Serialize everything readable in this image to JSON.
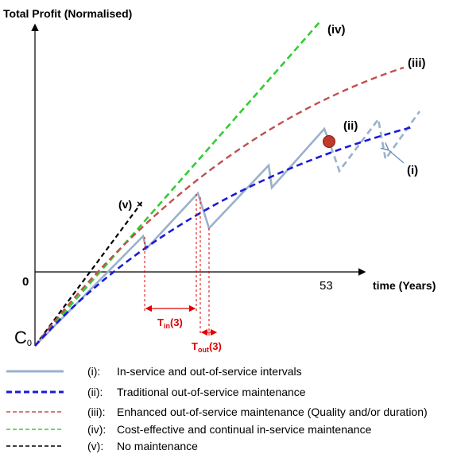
{
  "chart_data": {
    "type": "line",
    "ylabel": "Total Profit (Normalised)",
    "xlabel": "time (Years)",
    "origin_label": "0",
    "x_tick": "53",
    "c0_label": {
      "main": "C",
      "sub": "0"
    },
    "curve_labels": {
      "i": "(i)",
      "ii": "(ii)",
      "iii": "(iii)",
      "iv": "(iv)",
      "v": "(v)"
    },
    "t_in": {
      "main": "T",
      "sub": "in",
      "suffix": "(3)"
    },
    "t_out": {
      "main": "T",
      "sub": "out",
      "suffix": "(3)"
    },
    "colors": {
      "i": "#9ab1cc",
      "ii": "#1a1adb",
      "iii": "#c0504d",
      "iv": "#33cc33",
      "v": "#000000",
      "annotation": "#e00000",
      "marker": "#c0392b"
    }
  },
  "legend": [
    {
      "key": "(i):",
      "text": "In-service and out-of-service intervals",
      "color": "#9ab1cc",
      "style": "solid"
    },
    {
      "key": "(ii):",
      "text": "Traditional out-of-service maintenance",
      "color": "#1a1adb",
      "style": "dashed-bold"
    },
    {
      "key": "(iii):",
      "text": "Enhanced out-of-service maintenance  (Quality and/or duration)",
      "color": "#c0504d",
      "style": "dashed"
    },
    {
      "key": "(iv):",
      "text": "Cost-effective and continual in-service maintenance",
      "color": "#33cc33",
      "style": "dashed"
    },
    {
      "key": "(v):",
      "text": "No maintenance",
      "color": "#000000",
      "style": "dashed"
    }
  ]
}
